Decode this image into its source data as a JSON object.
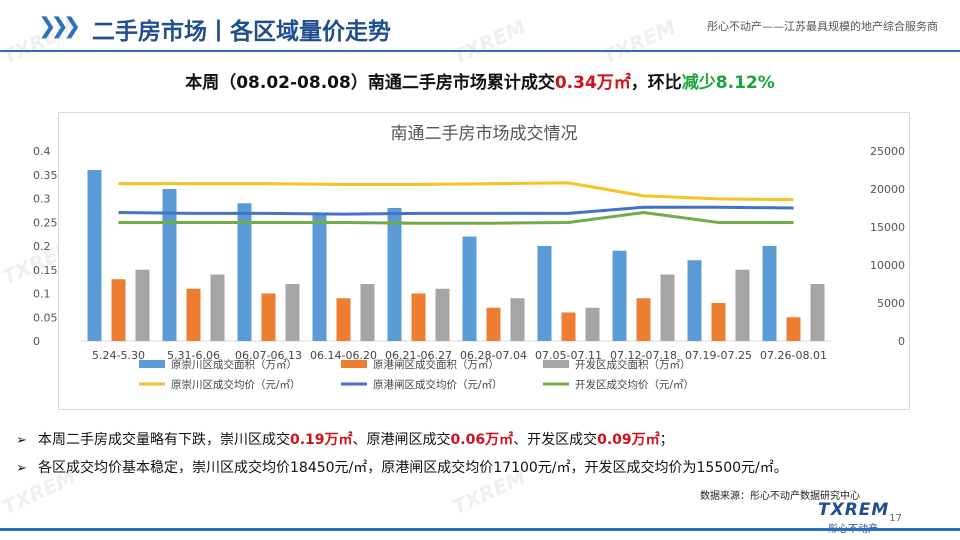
{
  "header": {
    "title": "二手房市场丨各区域量价走势",
    "slogan": "彤心不动产——江苏最具规模的地产综合服务商"
  },
  "summary": {
    "prefix": "本周（08.02-08.08）南通二手房市场累计成交",
    "total": "0.34万㎡",
    "mid": "，环比",
    "change": "减少8.12%"
  },
  "colors": {
    "brand": "#2e6fb8",
    "highlight_red": "#d0101b",
    "highlight_green": "#18a53a",
    "bar_chongchuan": "#5b9bd5",
    "bar_yuangangzha": "#ed7d31",
    "bar_kaifa": "#a5a5a5",
    "line_chongchuan": "#f5c324",
    "line_yuangangzha": "#4472c4",
    "line_kaifa": "#70ad47"
  },
  "chart_data": {
    "type": "bar",
    "title": "南通二手房市场成交情况",
    "categories": [
      "5.24-5.30",
      "5.31-6.06",
      "06.07-06.13",
      "06.14-06.20",
      "06.21-06.27",
      "06.28-07.04",
      "07.05-07.11",
      "07.12-07.18",
      "07.19-07.25",
      "07.26-08.01"
    ],
    "y_left": {
      "min": 0,
      "max": 0.4,
      "ticks": [
        "0",
        "0.05",
        "0.1",
        "0.15",
        "0.2",
        "0.25",
        "0.3",
        "0.35",
        "0.4"
      ]
    },
    "y_right": {
      "min": 0,
      "max": 25000,
      "ticks": [
        "0",
        "5000",
        "10000",
        "15000",
        "20000",
        "25000"
      ]
    },
    "grid": false,
    "legend_position": "bottom",
    "series": [
      {
        "name": "原崇川区成交面积（万㎡）",
        "kind": "bar",
        "axis": "left",
        "values": [
          0.36,
          0.32,
          0.29,
          0.27,
          0.28,
          0.22,
          0.2,
          0.19,
          0.17,
          0.2
        ]
      },
      {
        "name": "原港闸区成交面积（万㎡）",
        "kind": "bar",
        "axis": "left",
        "values": [
          0.13,
          0.11,
          0.1,
          0.09,
          0.1,
          0.07,
          0.06,
          0.09,
          0.08,
          0.05
        ]
      },
      {
        "name": "开发区成交面积（万㎡）",
        "kind": "bar",
        "axis": "left",
        "values": [
          0.15,
          0.14,
          0.12,
          0.12,
          0.11,
          0.09,
          0.07,
          0.14,
          0.15,
          0.12
        ]
      },
      {
        "name": "原崇川区成交均价（元/㎡）",
        "kind": "line",
        "axis": "right",
        "values": [
          20700,
          20700,
          20700,
          20600,
          20600,
          20700,
          20800,
          19100,
          18700,
          18600
        ]
      },
      {
        "name": "原港闸区成交均价（元/㎡）",
        "kind": "line",
        "axis": "right",
        "values": [
          16900,
          16800,
          16800,
          16700,
          16800,
          16800,
          16800,
          17600,
          17600,
          17500
        ]
      },
      {
        "name": "开发区成交均价（元/㎡）",
        "kind": "line",
        "axis": "right",
        "values": [
          15600,
          15600,
          15600,
          15600,
          15500,
          15500,
          15600,
          16900,
          15600,
          15600
        ]
      }
    ]
  },
  "bullets": [
    {
      "mark": "➢",
      "parts": [
        "本周二手房成交量略有下跌，崇川区成交",
        "0.19万㎡",
        "、原港闸区成交",
        "0.06万㎡",
        "、开发区成交",
        "0.09万㎡",
        "；"
      ]
    },
    {
      "mark": "➢",
      "text": "各区成交均价基本稳定，崇川区成交均价18450元/㎡，原港闸区成交均价17100元/㎡，开发区成交均价为15500元/㎡。"
    }
  ],
  "footer": {
    "source": "数据来源：彤心不动产数据研究中心",
    "logo_main": "TXREM",
    "logo_sub": "彤心不动产",
    "page_number": "17"
  },
  "watermark": {
    "main": "TXREM",
    "sub": "彤心不动产"
  }
}
